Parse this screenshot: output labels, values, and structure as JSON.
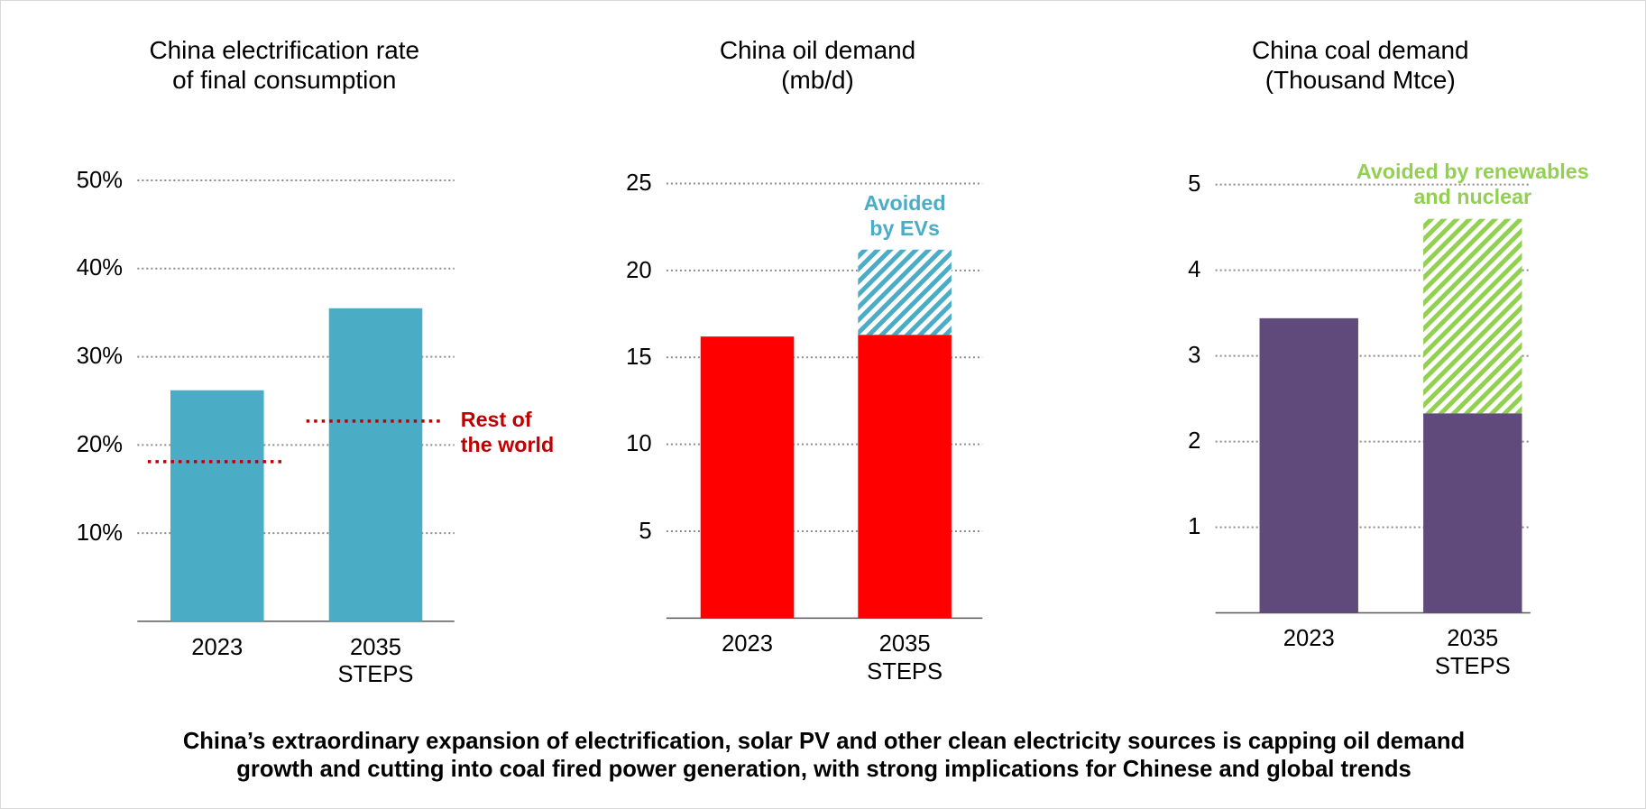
{
  "chart_data": [
    {
      "type": "bar",
      "title": "China electrification rate\nof final consumption",
      "categories": [
        "2023",
        "2035\nSTEPS"
      ],
      "series": [
        {
          "color": "#4bacc6",
          "values": [
            26.2,
            35.5
          ]
        }
      ],
      "reference": {
        "name": "Rest of\nthe world",
        "color": "#c00000",
        "values": [
          18.1,
          22.7
        ]
      },
      "ylim": [
        0,
        50
      ],
      "yticks": [
        {
          "value": 10,
          "label": "10%"
        },
        {
          "value": 20,
          "label": "20%"
        },
        {
          "value": 30,
          "label": "30%"
        },
        {
          "value": 40,
          "label": "40%"
        },
        {
          "value": 50,
          "label": "50%"
        }
      ],
      "grid": true
    },
    {
      "type": "stacked_bar",
      "title": "China oil demand\n(mb/d)",
      "categories": [
        "2023",
        "2035\nSTEPS"
      ],
      "series": [
        {
          "color": "#ff0000",
          "values": [
            16.2,
            16.3
          ]
        },
        {
          "name": "Avoided\nby EVs",
          "color": "#4bacc6",
          "hatch": true,
          "values": [
            null,
            4.9
          ]
        }
      ],
      "ylim": [
        0,
        25
      ],
      "yticks": [
        5,
        10,
        15,
        20,
        25
      ],
      "grid": true
    },
    {
      "type": "stacked_bar",
      "title": "China coal demand\n(Thousand Mtce)",
      "categories": [
        "2023",
        "2035\nSTEPS"
      ],
      "series": [
        {
          "color": "#604a7b",
          "values": [
            3.44,
            2.33
          ]
        },
        {
          "name": "Avoided by renewables\nand nuclear",
          "color": "#92d050",
          "hatch": true,
          "values": [
            null,
            2.27
          ]
        }
      ],
      "ylim": [
        0,
        5
      ],
      "yticks": [
        1,
        2,
        3,
        4,
        5
      ],
      "grid": true
    }
  ],
  "caption": "China’s extraordinary expansion of electrification, solar PV and other clean electricity sources is capping oil demand\ngrowth and cutting into coal fired power generation, with strong implications for Chinese and global trends"
}
